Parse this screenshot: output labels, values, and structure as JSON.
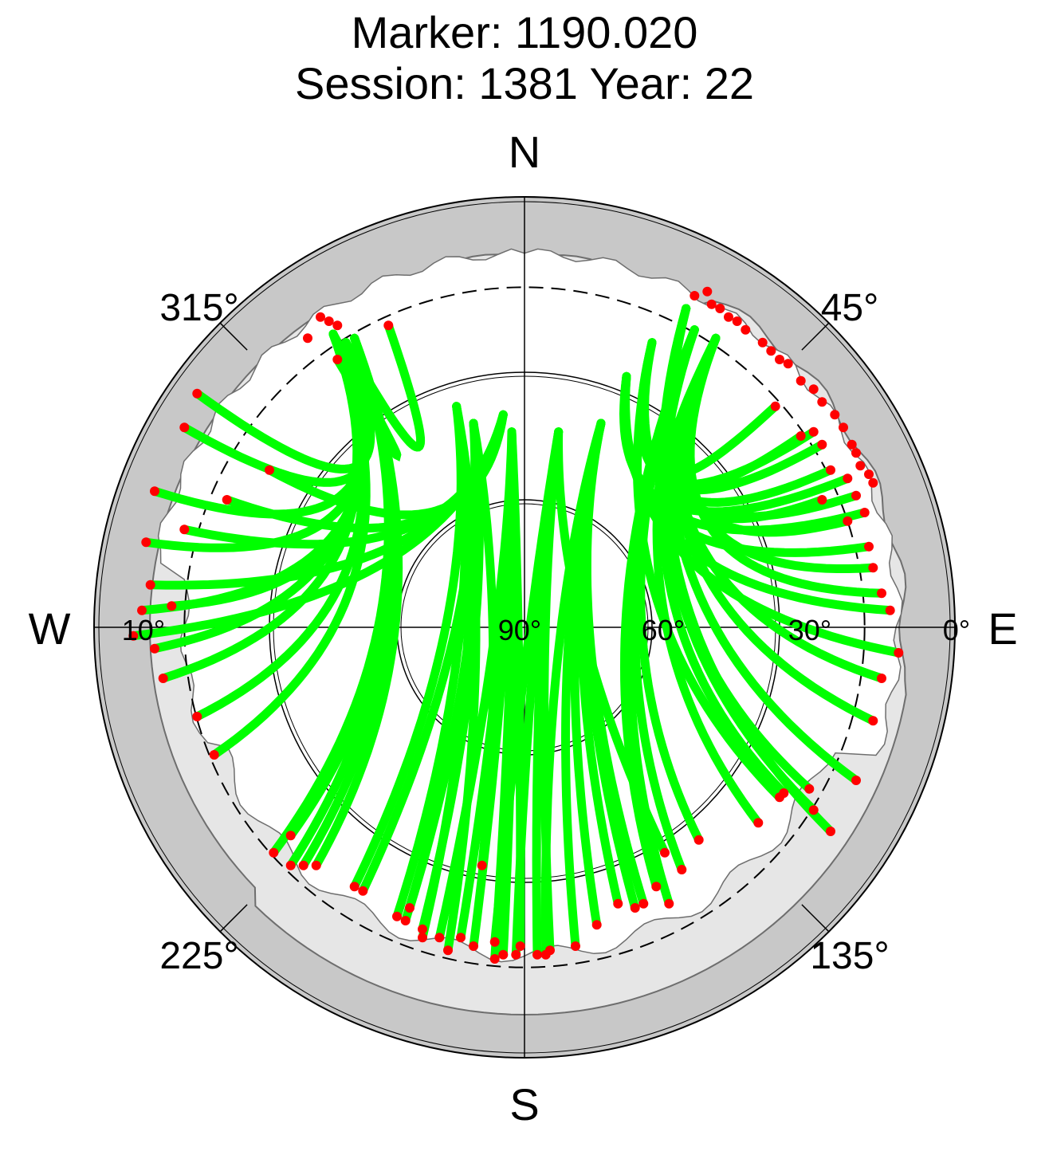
{
  "chart_data": {
    "type": "scatter",
    "projection": "polar-skyplot",
    "title": "Marker: 1190.020",
    "subtitle": "Session: 1381 Year: 22",
    "compass": {
      "north": "N",
      "east": "E",
      "south": "S",
      "west": "W"
    },
    "azimuth_labels": [
      {
        "az": 45,
        "text": "45°"
      },
      {
        "az": 135,
        "text": "135°"
      },
      {
        "az": 225,
        "text": "225°"
      },
      {
        "az": 315,
        "text": "315°"
      }
    ],
    "elevation_labels": [
      {
        "elev": 0,
        "text": "0°"
      },
      {
        "elev": 30,
        "text": "30°"
      },
      {
        "elev": 60,
        "text": "60°"
      },
      {
        "elev": 90,
        "text": "90°"
      },
      {
        "elev": 10,
        "text": "10°"
      }
    ],
    "elevation_circles": [
      0,
      30,
      60
    ],
    "elevation_mask_deg": 10,
    "colors": {
      "track": "#00ff00",
      "endpoint": "#ff0000",
      "horizon_band": "#c8c8c8",
      "obstruction": "#e6e6e6",
      "horizon_line": "#6e6e6e"
    },
    "track_arcs": [
      {
        "tip": [
          -42,
          67
        ],
        "ends": [
          [
            -32,
            71
          ],
          [
            -77,
            55
          ],
          [
            -80,
            47
          ],
          [
            -87,
            32
          ],
          [
            -89,
            20
          ],
          [
            -90,
            4
          ]
        ]
      },
      {
        "tip": [
          -45,
          69
        ],
        "ends": [
          [
            -44,
            63
          ],
          [
            -83,
            5
          ],
          [
            -87,
            -5
          ],
          [
            -85,
            -12
          ],
          [
            -77,
            -21
          ],
          [
            -73,
            -30
          ]
        ]
      },
      {
        "tip": [
          -40,
          68
        ],
        "ends": [
          [
            -55,
            -49
          ],
          [
            -59,
            -53
          ],
          [
            -52,
            -56
          ],
          [
            -49,
            -56
          ],
          [
            -55,
            -56
          ]
        ]
      },
      {
        "tip": [
          -12,
          48
        ],
        "ends": [
          [
            -10,
            -56
          ],
          [
            -27,
            -66
          ],
          [
            -28,
            -69
          ],
          [
            -24,
            -71
          ],
          [
            -38,
            -62
          ]
        ]
      },
      {
        "tip": [
          -3,
          46
        ],
        "ends": [
          [
            -1,
            -75
          ],
          [
            -5,
            -77
          ],
          [
            -12,
            -75
          ],
          [
            -15,
            -73
          ],
          [
            -20,
            -73
          ],
          [
            -7,
            -78
          ]
        ]
      },
      {
        "tip": [
          -16,
          52
        ],
        "ends": [
          [
            -40,
            -61
          ],
          [
            -30,
            -68
          ],
          [
            -24,
            -73
          ],
          [
            -18,
            -76
          ]
        ]
      },
      {
        "tip": [
          18,
          48
        ],
        "ends": [
          [
            5,
            -77
          ],
          [
            12,
            -75
          ],
          [
            17,
            -70
          ],
          [
            22,
            -65
          ],
          [
            26,
            -66
          ],
          [
            28,
            -65
          ]
        ]
      },
      {
        "tip": [
          8,
          46
        ],
        "ends": [
          [
            -7,
            -74
          ],
          [
            -2,
            -77
          ],
          [
            3,
            -77
          ],
          [
            6,
            -76
          ],
          [
            33,
            -53
          ]
        ]
      },
      {
        "tip": [
          40,
          70
        ],
        "ends": [
          [
            34,
            -65
          ],
          [
            31,
            -61
          ],
          [
            37,
            -57
          ],
          [
            41,
            -50
          ],
          [
            55,
            -46
          ],
          [
            61,
            -39
          ]
        ]
      },
      {
        "tip": [
          45,
          68
        ],
        "ends": [
          [
            59,
            52
          ],
          [
            65,
            45
          ],
          [
            70,
            30
          ],
          [
            76,
            25
          ],
          [
            82,
            14
          ],
          [
            84,
            8
          ]
        ]
      },
      {
        "tip": [
          38,
          75
        ],
        "ends": [
          [
            84,
            -12
          ],
          [
            82,
            -22
          ],
          [
            78,
            -36
          ],
          [
            67,
            -38
          ],
          [
            68,
            -43
          ],
          [
            72,
            -48
          ]
        ]
      },
      {
        "tip": [
          24,
          59
        ],
        "ends": [
          [
            81,
            19
          ],
          [
            76,
            35
          ],
          [
            80,
            27
          ],
          [
            86,
            4
          ],
          [
            88,
            -6
          ]
        ]
      },
      {
        "tip": [
          -5,
          50
        ],
        "ends": [
          [
            -60,
            37
          ],
          [
            -70,
            30
          ],
          [
            -88,
            10
          ],
          [
            -92,
            -2
          ],
          [
            -80,
            23
          ]
        ]
      },
      {
        "tip": [
          30,
          67
        ],
        "ends": [
          [
            70,
            43
          ],
          [
            72,
            37
          ],
          [
            68,
            46
          ],
          [
            78,
            31
          ],
          [
            60,
            -40
          ]
        ]
      }
    ],
    "start_points": [
      [
        40,
        78
      ],
      [
        44,
        76
      ],
      [
        46,
        75
      ],
      [
        48,
        73
      ],
      [
        52,
        70
      ],
      [
        56,
        67
      ],
      [
        58,
        65
      ],
      [
        62,
        62
      ],
      [
        65,
        58
      ],
      [
        68,
        56
      ],
      [
        70,
        53
      ],
      [
        73,
        50
      ],
      [
        75,
        47
      ],
      [
        77,
        43
      ],
      [
        78,
        41
      ],
      [
        79,
        38
      ],
      [
        81,
        36
      ],
      [
        82,
        34
      ],
      [
        43,
        79
      ],
      [
        50,
        72
      ],
      [
        60,
        63
      ],
      [
        -44,
        71
      ],
      [
        -46,
        72
      ],
      [
        -48,
        73
      ],
      [
        -51,
        68
      ]
    ]
  }
}
